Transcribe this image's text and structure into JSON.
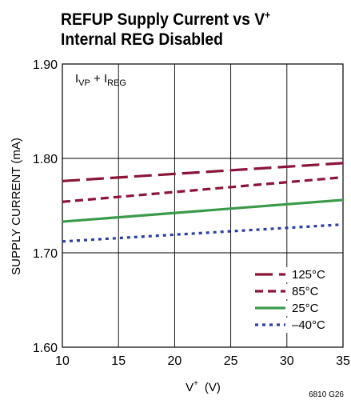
{
  "chart_data": {
    "type": "line",
    "title_line1": "REFUP Supply Current vs V",
    "title_line1_sup": "+",
    "title_line2": "Internal REG Disabled",
    "xlabel_main": "V",
    "xlabel_sup": "+",
    "xlabel_unit": "(V)",
    "ylabel": "SUPPLY CURRENT (mA)",
    "xlim": [
      10,
      35
    ],
    "ylim": [
      1.6,
      1.9
    ],
    "x_ticks": [
      "10",
      "15",
      "20",
      "25",
      "30",
      "35"
    ],
    "y_ticks": [
      "1.60",
      "1.70",
      "1.80",
      "1.90"
    ],
    "x_tick_values": [
      10,
      15,
      20,
      25,
      30,
      35
    ],
    "y_tick_values": [
      1.6,
      1.7,
      1.8,
      1.9
    ],
    "grid": true,
    "legend_position": "bottom-right",
    "annotation": {
      "main1": "I",
      "sub1": "VP",
      "plus": " + I",
      "sub2": "REG"
    },
    "figure_code": "6810 G26",
    "series": [
      {
        "name": "125°C",
        "color": "#8b1538",
        "dash": "long-dash",
        "x": [
          10,
          35
        ],
        "y": [
          1.776,
          1.795
        ]
      },
      {
        "name": "85°C",
        "color": "#8b1538",
        "dash": "dash",
        "x": [
          10,
          35
        ],
        "y": [
          1.754,
          1.78
        ]
      },
      {
        "name": "25°C",
        "color": "#3a9a4a",
        "dash": "solid",
        "x": [
          10,
          35
        ],
        "y": [
          1.733,
          1.756
        ]
      },
      {
        "name": "–40°C",
        "color": "#2a3fa0",
        "dash": "dot",
        "x": [
          10,
          35
        ],
        "y": [
          1.712,
          1.73
        ]
      }
    ]
  }
}
